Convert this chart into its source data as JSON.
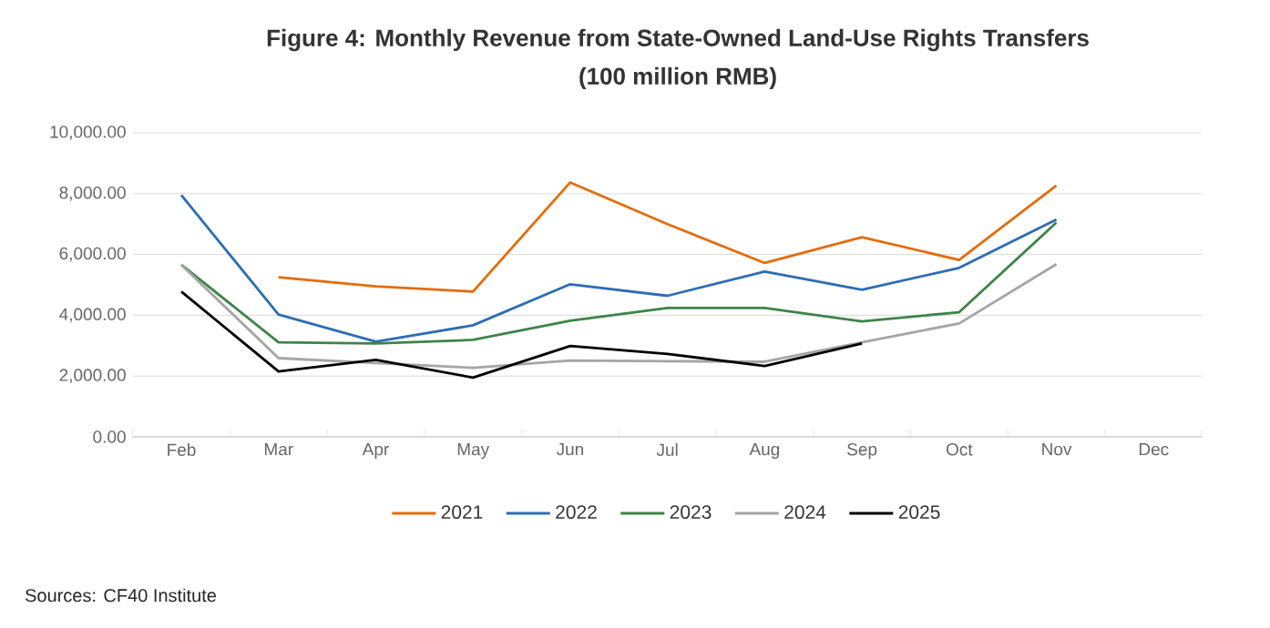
{
  "chart_data": {
    "type": "line",
    "title": "Figure 4: Monthly Revenue from State-Owned Land-Use Rights Transfers",
    "subtitle": "(100 million RMB)",
    "categories": [
      "Feb",
      "Mar",
      "Apr",
      "May",
      "Jun",
      "Jul",
      "Aug",
      "Sep",
      "Oct",
      "Nov",
      "Dec"
    ],
    "series": [
      {
        "name": "2021",
        "color": "#e46c0a",
        "values": [
          null,
          5250,
          4950,
          4780,
          8370,
          7000,
          5720,
          6570,
          5820,
          8270,
          null
        ]
      },
      {
        "name": "2022",
        "color": "#2e6db4",
        "values": [
          7950,
          4020,
          3130,
          3670,
          5020,
          4640,
          5440,
          4840,
          5560,
          7150,
          null
        ]
      },
      {
        "name": "2023",
        "color": "#3e8447",
        "values": [
          5660,
          3110,
          3070,
          3190,
          3820,
          4240,
          4240,
          3800,
          4100,
          7050,
          null
        ]
      },
      {
        "name": "2024",
        "color": "#a5a5a5",
        "values": [
          5660,
          2590,
          2430,
          2270,
          2510,
          2490,
          2470,
          3110,
          3730,
          5680,
          null
        ]
      },
      {
        "name": "2025",
        "color": "#000000",
        "values": [
          4780,
          2150,
          2530,
          1950,
          2990,
          2730,
          2330,
          3070,
          null,
          null,
          null
        ]
      }
    ],
    "ylim": [
      0,
      10000
    ],
    "yticks": [
      {
        "value": 0,
        "label": "0.00"
      },
      {
        "value": 2000,
        "label": "2,000.00"
      },
      {
        "value": 4000,
        "label": "4,000.00"
      },
      {
        "value": 6000,
        "label": "6,000.00"
      },
      {
        "value": 8000,
        "label": "8,000.00"
      },
      {
        "value": 10000,
        "label": "10,000.00"
      }
    ],
    "grid": "y",
    "legend": "bottom",
    "marker": "none",
    "line_style": "solid",
    "annotations": [
      "Sources: CF40 Institute"
    ]
  }
}
